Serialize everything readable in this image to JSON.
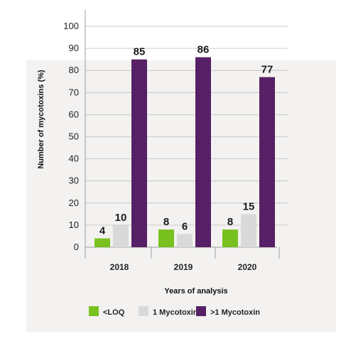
{
  "chart_data": {
    "type": "bar",
    "categories": [
      "2018",
      "2019",
      "2020"
    ],
    "series": [
      {
        "name": "<LOQ",
        "color": "#78c11f",
        "values": [
          4,
          8,
          8
        ]
      },
      {
        "name": "1 Mycotoxin",
        "color": "#d9d9d9",
        "values": [
          10,
          6,
          15
        ]
      },
      {
        "name": ">1 Mycotoxin",
        "color": "#572066",
        "values": [
          85,
          86,
          77
        ]
      }
    ],
    "xlabel": "Years of analysis",
    "ylabel": "Number of mycotoxins (%)",
    "ylim": [
      0,
      100
    ],
    "yticks": [
      0,
      10,
      20,
      30,
      40,
      50,
      60,
      70,
      80,
      90,
      100
    ],
    "grid": true,
    "legend": "bottom"
  },
  "colors": {
    "panel_background": "#f3f2f1",
    "grid": "#bdbdbd",
    "axis": "#9e9e9e"
  }
}
